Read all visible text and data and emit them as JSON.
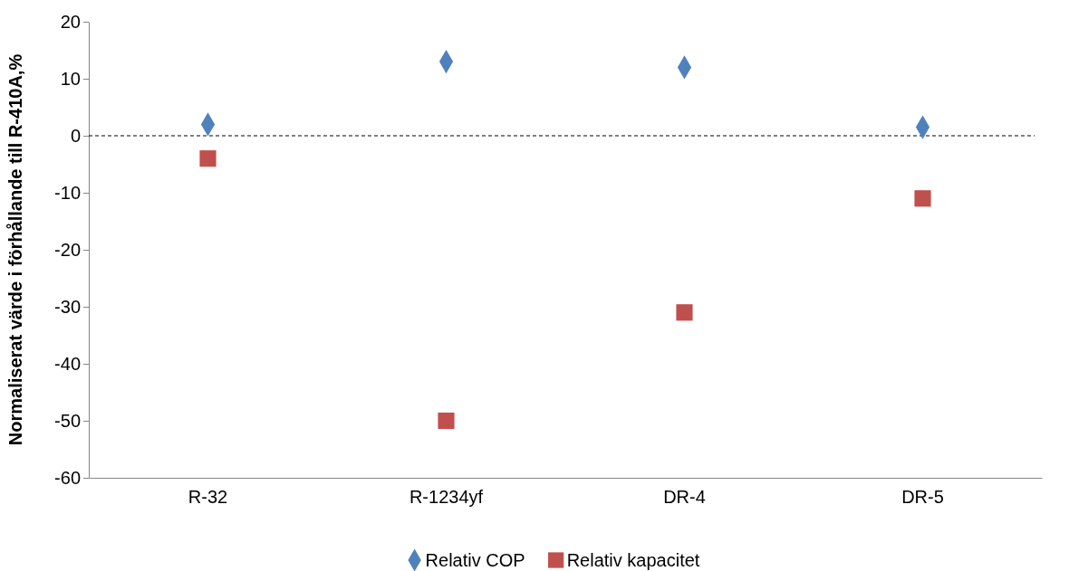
{
  "chart_data": {
    "type": "scatter",
    "ylabel": "Normaliserat värde i förhållande till R-410A,%",
    "categories": [
      "R-32",
      "R-1234yf",
      "DR-4",
      "DR-5"
    ],
    "series": [
      {
        "name": "Relativ COP",
        "color": "#4f81bd",
        "marker": "diamond",
        "values": [
          2,
          13,
          12,
          1.5
        ]
      },
      {
        "name": "Relativ kapacitet",
        "color": "#c0504d",
        "marker": "square",
        "values": [
          -4,
          -50,
          -31,
          -11
        ]
      }
    ],
    "ylim": [
      -60,
      20
    ],
    "yticks": [
      -60,
      -50,
      -40,
      -30,
      -20,
      -10,
      0,
      10,
      20
    ],
    "ref_lines": [
      {
        "axis": "y",
        "value": 0,
        "color": "#000000",
        "line_style": "dashed"
      }
    ],
    "grid": false,
    "legend": "bottom"
  }
}
